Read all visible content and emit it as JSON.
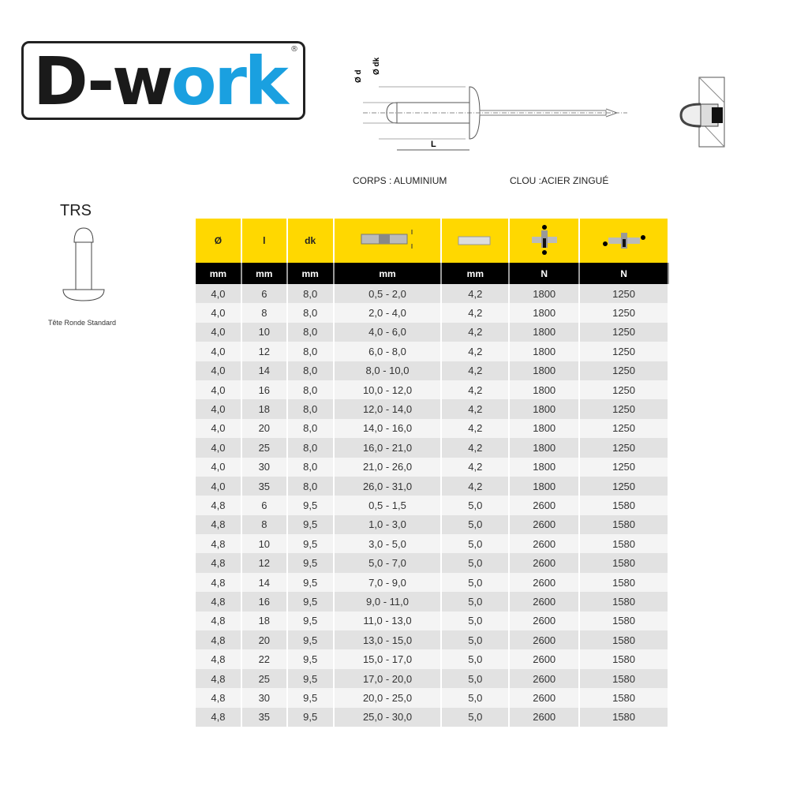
{
  "logo": {
    "part1": "D-w",
    "part2": "ork",
    "reg": "®"
  },
  "diagram": {
    "d_label": "Ø d",
    "dk_label": "Ø dk",
    "l_label": "L"
  },
  "materials": {
    "body": "CORPS : ALUMINIUM",
    "mandrel": "CLOU :ACIER ZINGUÉ"
  },
  "product": {
    "code": "TRS",
    "caption": "Tête Ronde Standard"
  },
  "table": {
    "headers": [
      "Ø",
      "l",
      "dk",
      "grip-range-icon",
      "drill-hole-icon",
      "tensile-force-icon",
      "shear-force-icon"
    ],
    "units": [
      "mm",
      "mm",
      "mm",
      "mm",
      "mm",
      "N",
      "N"
    ],
    "rows": [
      [
        "4,0",
        "6",
        "8,0",
        "0,5 - 2,0",
        "4,2",
        "1800",
        "1250"
      ],
      [
        "4,0",
        "8",
        "8,0",
        "2,0 - 4,0",
        "4,2",
        "1800",
        "1250"
      ],
      [
        "4,0",
        "10",
        "8,0",
        "4,0 - 6,0",
        "4,2",
        "1800",
        "1250"
      ],
      [
        "4,0",
        "12",
        "8,0",
        "6,0 - 8,0",
        "4,2",
        "1800",
        "1250"
      ],
      [
        "4,0",
        "14",
        "8,0",
        "8,0 - 10,0",
        "4,2",
        "1800",
        "1250"
      ],
      [
        "4,0",
        "16",
        "8,0",
        "10,0 - 12,0",
        "4,2",
        "1800",
        "1250"
      ],
      [
        "4,0",
        "18",
        "8,0",
        "12,0 - 14,0",
        "4,2",
        "1800",
        "1250"
      ],
      [
        "4,0",
        "20",
        "8,0",
        "14,0 - 16,0",
        "4,2",
        "1800",
        "1250"
      ],
      [
        "4,0",
        "25",
        "8,0",
        "16,0 - 21,0",
        "4,2",
        "1800",
        "1250"
      ],
      [
        "4,0",
        "30",
        "8,0",
        "21,0 - 26,0",
        "4,2",
        "1800",
        "1250"
      ],
      [
        "4,0",
        "35",
        "8,0",
        "26,0 - 31,0",
        "4,2",
        "1800",
        "1250"
      ],
      [
        "4,8",
        "6",
        "9,5",
        "0,5 - 1,5",
        "5,0",
        "2600",
        "1580"
      ],
      [
        "4,8",
        "8",
        "9,5",
        "1,0 - 3,0",
        "5,0",
        "2600",
        "1580"
      ],
      [
        "4,8",
        "10",
        "9,5",
        "3,0 - 5,0",
        "5,0",
        "2600",
        "1580"
      ],
      [
        "4,8",
        "12",
        "9,5",
        "5,0 - 7,0",
        "5,0",
        "2600",
        "1580"
      ],
      [
        "4,8",
        "14",
        "9,5",
        "7,0 - 9,0",
        "5,0",
        "2600",
        "1580"
      ],
      [
        "4,8",
        "16",
        "9,5",
        "9,0 - 11,0",
        "5,0",
        "2600",
        "1580"
      ],
      [
        "4,8",
        "18",
        "9,5",
        "11,0 - 13,0",
        "5,0",
        "2600",
        "1580"
      ],
      [
        "4,8",
        "20",
        "9,5",
        "13,0 - 15,0",
        "5,0",
        "2600",
        "1580"
      ],
      [
        "4,8",
        "22",
        "9,5",
        "15,0 - 17,0",
        "5,0",
        "2600",
        "1580"
      ],
      [
        "4,8",
        "25",
        "9,5",
        "17,0 - 20,0",
        "5,0",
        "2600",
        "1580"
      ],
      [
        "4,8",
        "30",
        "9,5",
        "20,0 - 25,0",
        "5,0",
        "2600",
        "1580"
      ],
      [
        "4,8",
        "35",
        "9,5",
        "25,0 - 30,0",
        "5,0",
        "2600",
        "1580"
      ]
    ]
  },
  "colors": {
    "header": "#ffd800",
    "units": "#000000",
    "brand_blue": "#1aa0e0"
  }
}
